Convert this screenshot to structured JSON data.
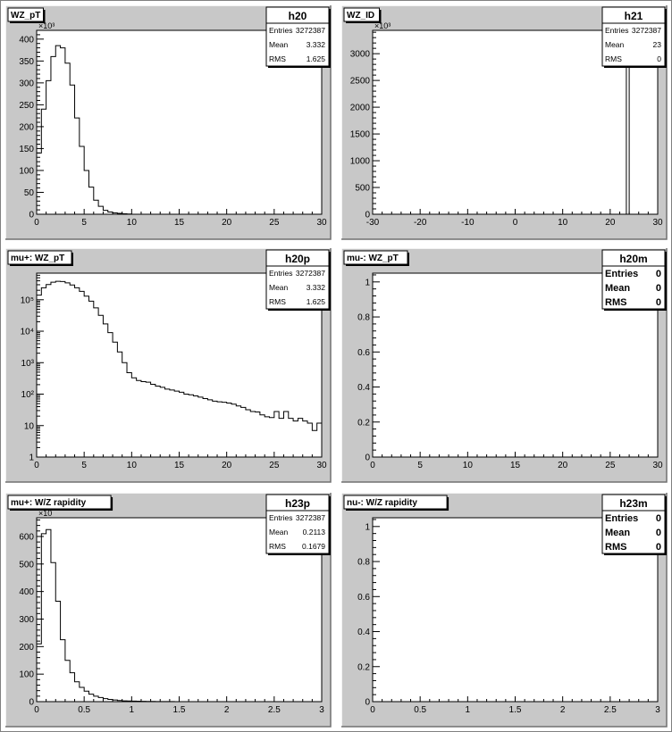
{
  "colors": {
    "background": "#ffffff",
    "pad": "#c8c8c8",
    "frame": "#000000",
    "line": "#000000"
  },
  "pads": [
    {
      "title": "WZ_pT",
      "stats": {
        "name": "h20",
        "rows": [
          {
            "label": "Entries",
            "value": "3272387"
          },
          {
            "label": "Mean",
            "value": "3.332"
          },
          {
            "label": "RMS",
            "value": "1.625"
          }
        ]
      },
      "chart_data": {
        "type": "histogram",
        "xlim": [
          0,
          30
        ],
        "ylim": [
          0,
          420
        ],
        "log_y": false,
        "exponent_label": "×10³",
        "x_ticks": [
          {
            "v": 0,
            "label": "0"
          },
          {
            "v": 5,
            "label": "5"
          },
          {
            "v": 10,
            "label": "10"
          },
          {
            "v": 15,
            "label": "15"
          },
          {
            "v": 20,
            "label": "20"
          },
          {
            "v": 25,
            "label": "25"
          },
          {
            "v": 30,
            "label": "30"
          }
        ],
        "y_ticks": [
          {
            "v": 0,
            "label": "0"
          },
          {
            "v": 50,
            "label": "50"
          },
          {
            "v": 100,
            "label": "100"
          },
          {
            "v": 150,
            "label": "150"
          },
          {
            "v": 200,
            "label": "200"
          },
          {
            "v": 250,
            "label": "250"
          },
          {
            "v": 300,
            "label": "300"
          },
          {
            "v": 350,
            "label": "350"
          },
          {
            "v": 400,
            "label": "400"
          }
        ],
        "bin_width": 0.5,
        "bin_start": 0,
        "values": [
          140,
          240,
          305,
          360,
          385,
          380,
          345,
          295,
          220,
          155,
          100,
          62,
          32,
          18,
          9,
          5,
          3,
          2,
          1,
          0.5
        ]
      }
    },
    {
      "title": "WZ_ID",
      "stats": {
        "name": "h21",
        "rows": [
          {
            "label": "Entries",
            "value": "3272387"
          },
          {
            "label": "Mean",
            "value": "23"
          },
          {
            "label": "RMS",
            "value": "0"
          }
        ]
      },
      "chart_data": {
        "type": "histogram",
        "xlim": [
          -30,
          30
        ],
        "ylim": [
          0,
          3436
        ],
        "log_y": false,
        "exponent_label": "×10³",
        "x_ticks": [
          {
            "v": -30,
            "label": "-30"
          },
          {
            "v": -20,
            "label": "-20"
          },
          {
            "v": -10,
            "label": "-10"
          },
          {
            "v": 0,
            "label": "0"
          },
          {
            "v": 10,
            "label": "10"
          },
          {
            "v": 20,
            "label": "20"
          },
          {
            "v": 30,
            "label": "30"
          }
        ],
        "y_ticks": [
          {
            "v": 0,
            "label": "0"
          },
          {
            "v": 500,
            "label": "500"
          },
          {
            "v": 1000,
            "label": "1000"
          },
          {
            "v": 1500,
            "label": "1500"
          },
          {
            "v": 2000,
            "label": "2000"
          },
          {
            "v": 2500,
            "label": "2500"
          },
          {
            "v": 3000,
            "label": "3000"
          }
        ],
        "bins": [
          {
            "lo": 23.4,
            "hi": 24.0,
            "v": 3272
          }
        ]
      }
    },
    {
      "title": "mu+: WZ_pT",
      "stats": {
        "name": "h20p",
        "rows": [
          {
            "label": "Entries",
            "value": "3272387"
          },
          {
            "label": "Mean",
            "value": "3.332"
          },
          {
            "label": "RMS",
            "value": "1.625"
          }
        ]
      },
      "chart_data": {
        "type": "histogram",
        "xlim": [
          0,
          30
        ],
        "ylim": [
          1,
          700000
        ],
        "log_y": true,
        "x_ticks": [
          {
            "v": 0,
            "label": "0"
          },
          {
            "v": 5,
            "label": "5"
          },
          {
            "v": 10,
            "label": "10"
          },
          {
            "v": 15,
            "label": "15"
          },
          {
            "v": 20,
            "label": "20"
          },
          {
            "v": 25,
            "label": "25"
          },
          {
            "v": 30,
            "label": "30"
          }
        ],
        "y_ticks": [
          {
            "v": 1,
            "label": "1"
          },
          {
            "v": 10,
            "label": "10"
          },
          {
            "v": 100,
            "label": "10²"
          },
          {
            "v": 1000,
            "label": "10³"
          },
          {
            "v": 10000,
            "label": "10⁴"
          },
          {
            "v": 100000,
            "label": "10⁵"
          }
        ],
        "bin_width": 0.5,
        "bin_start": 0,
        "values": [
          140000,
          240000,
          305000,
          360000,
          385000,
          380000,
          345000,
          295000,
          240000,
          185000,
          130000,
          90000,
          55000,
          32000,
          17000,
          9000,
          4500,
          2200,
          1000,
          480,
          330,
          270,
          250,
          240,
          205,
          180,
          165,
          145,
          135,
          125,
          115,
          100,
          95,
          88,
          80,
          72,
          66,
          60,
          57,
          55,
          52,
          48,
          42,
          38,
          32,
          28,
          27,
          22,
          19,
          18,
          28,
          17,
          28,
          17,
          14,
          17,
          14,
          12,
          7,
          12
        ]
      }
    },
    {
      "title": "mu-: WZ_pT",
      "stats": {
        "name": "h20m",
        "rows": [
          {
            "label": "Entries",
            "value": "0"
          },
          {
            "label": "Mean",
            "value": "0"
          },
          {
            "label": "RMS",
            "value": "0"
          }
        ]
      },
      "chart_data": {
        "type": "histogram",
        "xlim": [
          0,
          30
        ],
        "ylim": [
          0,
          1.05
        ],
        "log_y": false,
        "x_ticks": [
          {
            "v": 0,
            "label": "0"
          },
          {
            "v": 5,
            "label": "5"
          },
          {
            "v": 10,
            "label": "10"
          },
          {
            "v": 15,
            "label": "15"
          },
          {
            "v": 20,
            "label": "20"
          },
          {
            "v": 25,
            "label": "25"
          },
          {
            "v": 30,
            "label": "30"
          }
        ],
        "y_ticks": [
          {
            "v": 0,
            "label": "0"
          },
          {
            "v": 0.2,
            "label": "0.2"
          },
          {
            "v": 0.4,
            "label": "0.4"
          },
          {
            "v": 0.6,
            "label": "0.6"
          },
          {
            "v": 0.8,
            "label": "0.8"
          },
          {
            "v": 1,
            "label": "1"
          }
        ],
        "values": []
      }
    },
    {
      "title": "mu+: W/Z rapidity",
      "stats": {
        "name": "h23p",
        "rows": [
          {
            "label": "Entries",
            "value": "3272387"
          },
          {
            "label": "Mean",
            "value": "0.2113"
          },
          {
            "label": "RMS",
            "value": "0.1679"
          }
        ]
      },
      "chart_data": {
        "type": "histogram",
        "xlim": [
          0,
          3
        ],
        "ylim": [
          0,
          668
        ],
        "log_y": false,
        "exponent_label": "×10",
        "x_ticks": [
          {
            "v": 0,
            "label": "0"
          },
          {
            "v": 0.5,
            "label": "0.5"
          },
          {
            "v": 1,
            "label": "1"
          },
          {
            "v": 1.5,
            "label": "1.5"
          },
          {
            "v": 2,
            "label": "2"
          },
          {
            "v": 2.5,
            "label": "2.5"
          },
          {
            "v": 3,
            "label": "3"
          }
        ],
        "y_ticks": [
          {
            "v": 0,
            "label": "0"
          },
          {
            "v": 100,
            "label": "100"
          },
          {
            "v": 200,
            "label": "200"
          },
          {
            "v": 300,
            "label": "300"
          },
          {
            "v": 400,
            "label": "400"
          },
          {
            "v": 500,
            "label": "500"
          },
          {
            "v": 600,
            "label": "600"
          }
        ],
        "bin_width": 0.05,
        "bin_start": 0,
        "values": [
          210,
          610,
          625,
          505,
          365,
          225,
          150,
          105,
          72,
          52,
          38,
          27,
          20,
          15,
          11,
          8,
          6,
          4,
          3,
          2.5,
          2,
          1.5,
          1.2,
          1,
          0.8,
          0.6,
          0.5,
          0.4,
          0.3,
          0.2
        ]
      }
    },
    {
      "title": "nu-: W/Z rapidity",
      "stats": {
        "name": "h23m",
        "rows": [
          {
            "label": "Entries",
            "value": "0"
          },
          {
            "label": "Mean",
            "value": "0"
          },
          {
            "label": "RMS",
            "value": "0"
          }
        ]
      },
      "chart_data": {
        "type": "histogram",
        "xlim": [
          0,
          3
        ],
        "ylim": [
          0,
          1.05
        ],
        "log_y": false,
        "x_ticks": [
          {
            "v": 0,
            "label": "0"
          },
          {
            "v": 0.5,
            "label": "0.5"
          },
          {
            "v": 1,
            "label": "1"
          },
          {
            "v": 1.5,
            "label": "1.5"
          },
          {
            "v": 2,
            "label": "2"
          },
          {
            "v": 2.5,
            "label": "2.5"
          },
          {
            "v": 3,
            "label": "3"
          }
        ],
        "y_ticks": [
          {
            "v": 0,
            "label": "0"
          },
          {
            "v": 0.2,
            "label": "0.2"
          },
          {
            "v": 0.4,
            "label": "0.4"
          },
          {
            "v": 0.6,
            "label": "0.6"
          },
          {
            "v": 0.8,
            "label": "0.8"
          },
          {
            "v": 1,
            "label": "1"
          }
        ],
        "values": []
      }
    }
  ]
}
